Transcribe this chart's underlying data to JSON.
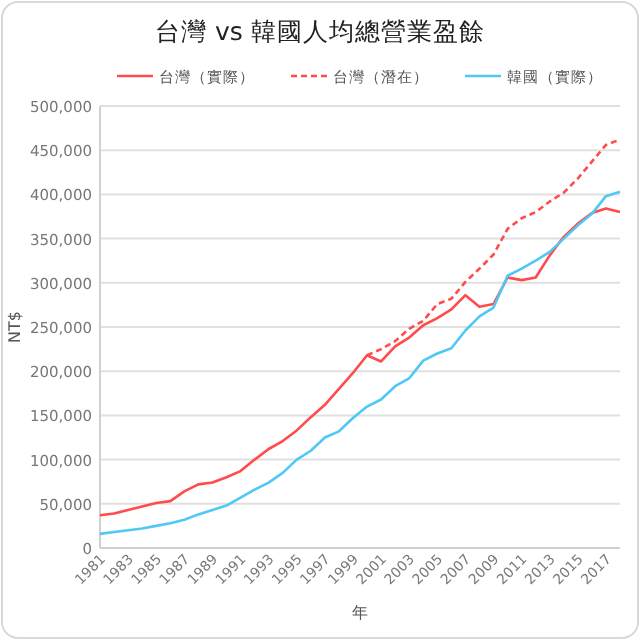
{
  "chart_data": {
    "type": "line",
    "title": "台灣 vs 韓國人均總營業盈餘",
    "xlabel": "年",
    "ylabel": "NT$",
    "x": [
      1981,
      1982,
      1983,
      1984,
      1985,
      1986,
      1987,
      1988,
      1989,
      1990,
      1991,
      1992,
      1993,
      1994,
      1995,
      1996,
      1997,
      1998,
      1999,
      2000,
      2001,
      2002,
      2003,
      2004,
      2005,
      2006,
      2007,
      2008,
      2009,
      2010,
      2011,
      2012,
      2013,
      2014,
      2015,
      2016,
      2017,
      2018
    ],
    "series": [
      {
        "name": "台灣（實際）",
        "color": "#ff4b4b",
        "line_style": "solid",
        "values": [
          37000,
          39000,
          43000,
          47000,
          51000,
          53000,
          64000,
          72000,
          74000,
          80000,
          87000,
          100000,
          112000,
          121000,
          133000,
          148000,
          162000,
          180000,
          198000,
          218000,
          211000,
          228000,
          238000,
          252000,
          260000,
          270000,
          286000,
          273000,
          276000,
          306000,
          303000,
          306000,
          331000,
          352000,
          367000,
          379000,
          384000,
          380000
        ]
      },
      {
        "name": "台灣（潛在）",
        "color": "#ff4b4b",
        "line_style": "dashed",
        "values": [
          null,
          null,
          null,
          null,
          null,
          null,
          null,
          null,
          null,
          null,
          null,
          null,
          null,
          null,
          null,
          null,
          null,
          null,
          null,
          218000,
          225000,
          234000,
          248000,
          257000,
          276000,
          282000,
          301000,
          316000,
          332000,
          361000,
          373000,
          380000,
          392000,
          402000,
          418000,
          437000,
          456000,
          462000
        ]
      },
      {
        "name": "韓國（實際）",
        "color": "#4fc8f5",
        "line_style": "solid",
        "values": [
          16000,
          18000,
          20000,
          22000,
          25000,
          28000,
          32000,
          38000,
          43000,
          48000,
          57000,
          66000,
          74000,
          85000,
          100000,
          110000,
          125000,
          132000,
          147000,
          160000,
          168000,
          183000,
          192000,
          212000,
          220000,
          226000,
          246000,
          262000,
          272000,
          308000,
          316000,
          325000,
          335000,
          350000,
          365000,
          378000,
          398000,
          403000
        ]
      }
    ],
    "xlim": [
      1981,
      2018
    ],
    "xticks": [
      1981,
      1983,
      1985,
      1987,
      1989,
      1991,
      1993,
      1995,
      1997,
      1999,
      2001,
      2003,
      2005,
      2007,
      2009,
      2011,
      2013,
      2015,
      2017
    ],
    "ylim": [
      0,
      500000
    ],
    "yticks": [
      0,
      {
        "value": 50000,
        "label": "50,000"
      },
      {
        "value": 100000,
        "label": "100,000"
      },
      {
        "value": 150000,
        "label": "150,000"
      },
      {
        "value": 200000,
        "label": "200,000"
      },
      {
        "value": 250000,
        "label": "250,000"
      },
      {
        "value": 300000,
        "label": "300,000"
      },
      {
        "value": 350000,
        "label": "350,000"
      },
      {
        "value": 400000,
        "label": "400,000"
      },
      {
        "value": 450000,
        "label": "450,000"
      },
      {
        "value": 500000,
        "label": "500,000"
      }
    ],
    "grid": "y",
    "legend": "top"
  }
}
